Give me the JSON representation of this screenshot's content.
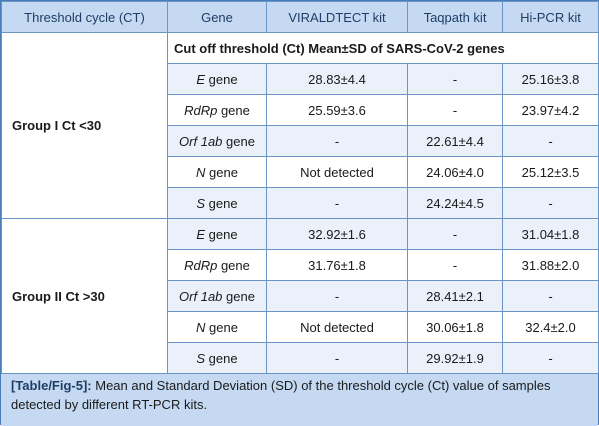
{
  "columns": [
    "Threshold cycle (CT)",
    "Gene",
    "VIRALDTECT kit",
    "Taqpath kit",
    "Hi-PCR kit"
  ],
  "subheader": "Cut off threshold (Ct) Mean±SD of SARS-CoV-2 genes",
  "groups": [
    {
      "label": "Group I Ct <30",
      "rows": [
        {
          "gene_name": "E",
          "gene_suffix": " gene",
          "viraldtect": "28.83±4.4",
          "taqpath": "-",
          "hipcr": "25.16±3.8"
        },
        {
          "gene_name": "RdRp",
          "gene_suffix": " gene",
          "viraldtect": "25.59±3.6",
          "taqpath": "-",
          "hipcr": "23.97±4.2"
        },
        {
          "gene_name": "Orf 1ab",
          "gene_suffix": " gene",
          "viraldtect": "-",
          "taqpath": "22.61±4.4",
          "hipcr": "-"
        },
        {
          "gene_name": "N",
          "gene_suffix": " gene",
          "viraldtect": "Not detected",
          "taqpath": "24.06±4.0",
          "hipcr": "25.12±3.5"
        },
        {
          "gene_name": "S",
          "gene_suffix": " gene",
          "viraldtect": "-",
          "taqpath": "24.24±4.5",
          "hipcr": "-"
        }
      ]
    },
    {
      "label": "Group II Ct >30",
      "rows": [
        {
          "gene_name": "E",
          "gene_suffix": " gene",
          "viraldtect": "32.92±1.6",
          "taqpath": "-",
          "hipcr": "31.04±1.8"
        },
        {
          "gene_name": "RdRp",
          "gene_suffix": " gene",
          "viraldtect": "31.76±1.8",
          "taqpath": "-",
          "hipcr": "31.88±2.0"
        },
        {
          "gene_name": "Orf 1ab",
          "gene_suffix": " gene",
          "viraldtect": "-",
          "taqpath": "28.41±2.1",
          "hipcr": "-"
        },
        {
          "gene_name": "N",
          "gene_suffix": " gene",
          "viraldtect": "Not detected",
          "taqpath": "30.06±1.8",
          "hipcr": "32.4±2.0"
        },
        {
          "gene_name": "S",
          "gene_suffix": " gene",
          "viraldtect": "-",
          "taqpath": "29.92±1.9",
          "hipcr": "-"
        }
      ]
    }
  ],
  "caption": {
    "ref": "[Table/Fig-5]:",
    "text": " Mean and Standard Deviation (SD) of the threshold cycle (Ct) value of samples detected by different RT-PCR kits."
  },
  "colors": {
    "header_bg": "#c5daf2",
    "stripe_bg": "#eaf1fa",
    "border": "#6c95c7",
    "header_text": "#1f3d66"
  }
}
